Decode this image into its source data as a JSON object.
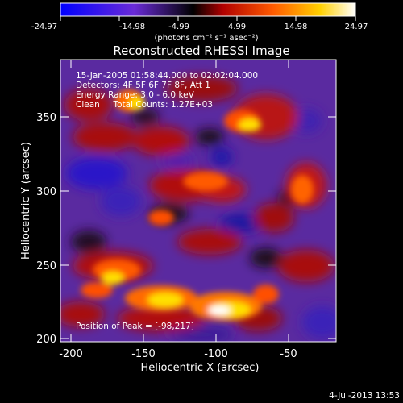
{
  "colorbar": {
    "tick_labels": [
      "-24.97",
      "-14.98",
      "-4.99",
      "4.99",
      "14.98",
      "24.97"
    ],
    "units_label": "(photons cm⁻² s⁻¹ asec⁻²)",
    "colormap": [
      "#0000ff",
      "#6a2bd8",
      "#000000",
      "#c00000",
      "#ff5a00",
      "#ffd000",
      "#ffffff"
    ]
  },
  "title": "Reconstructed RHESSI Image",
  "annotations": {
    "line1": "15-Jan-2005 01:58:44.000 to 02:02:04.000",
    "line2": "Detectors: 4F 5F 6F 7F 8F, Att 1",
    "line3": "Energy Range: 3.0 - 6.0 keV",
    "line4": "Clean     Total Counts: 1.27E+03",
    "peak": "Position of Peak = [-98,217]"
  },
  "axes": {
    "x_label": "Heliocentric X (arcsec)",
    "y_label": "Heliocentric Y (arcsec)",
    "x_ticks": [
      "-200",
      "-150",
      "-100",
      "-50"
    ],
    "y_ticks": [
      "350",
      "300",
      "250",
      "200"
    ],
    "x_range": [
      -205,
      -15
    ],
    "y_range": [
      197,
      385
    ]
  },
  "footer": {
    "timestamp": "4-Jul-2013 13:53"
  }
}
